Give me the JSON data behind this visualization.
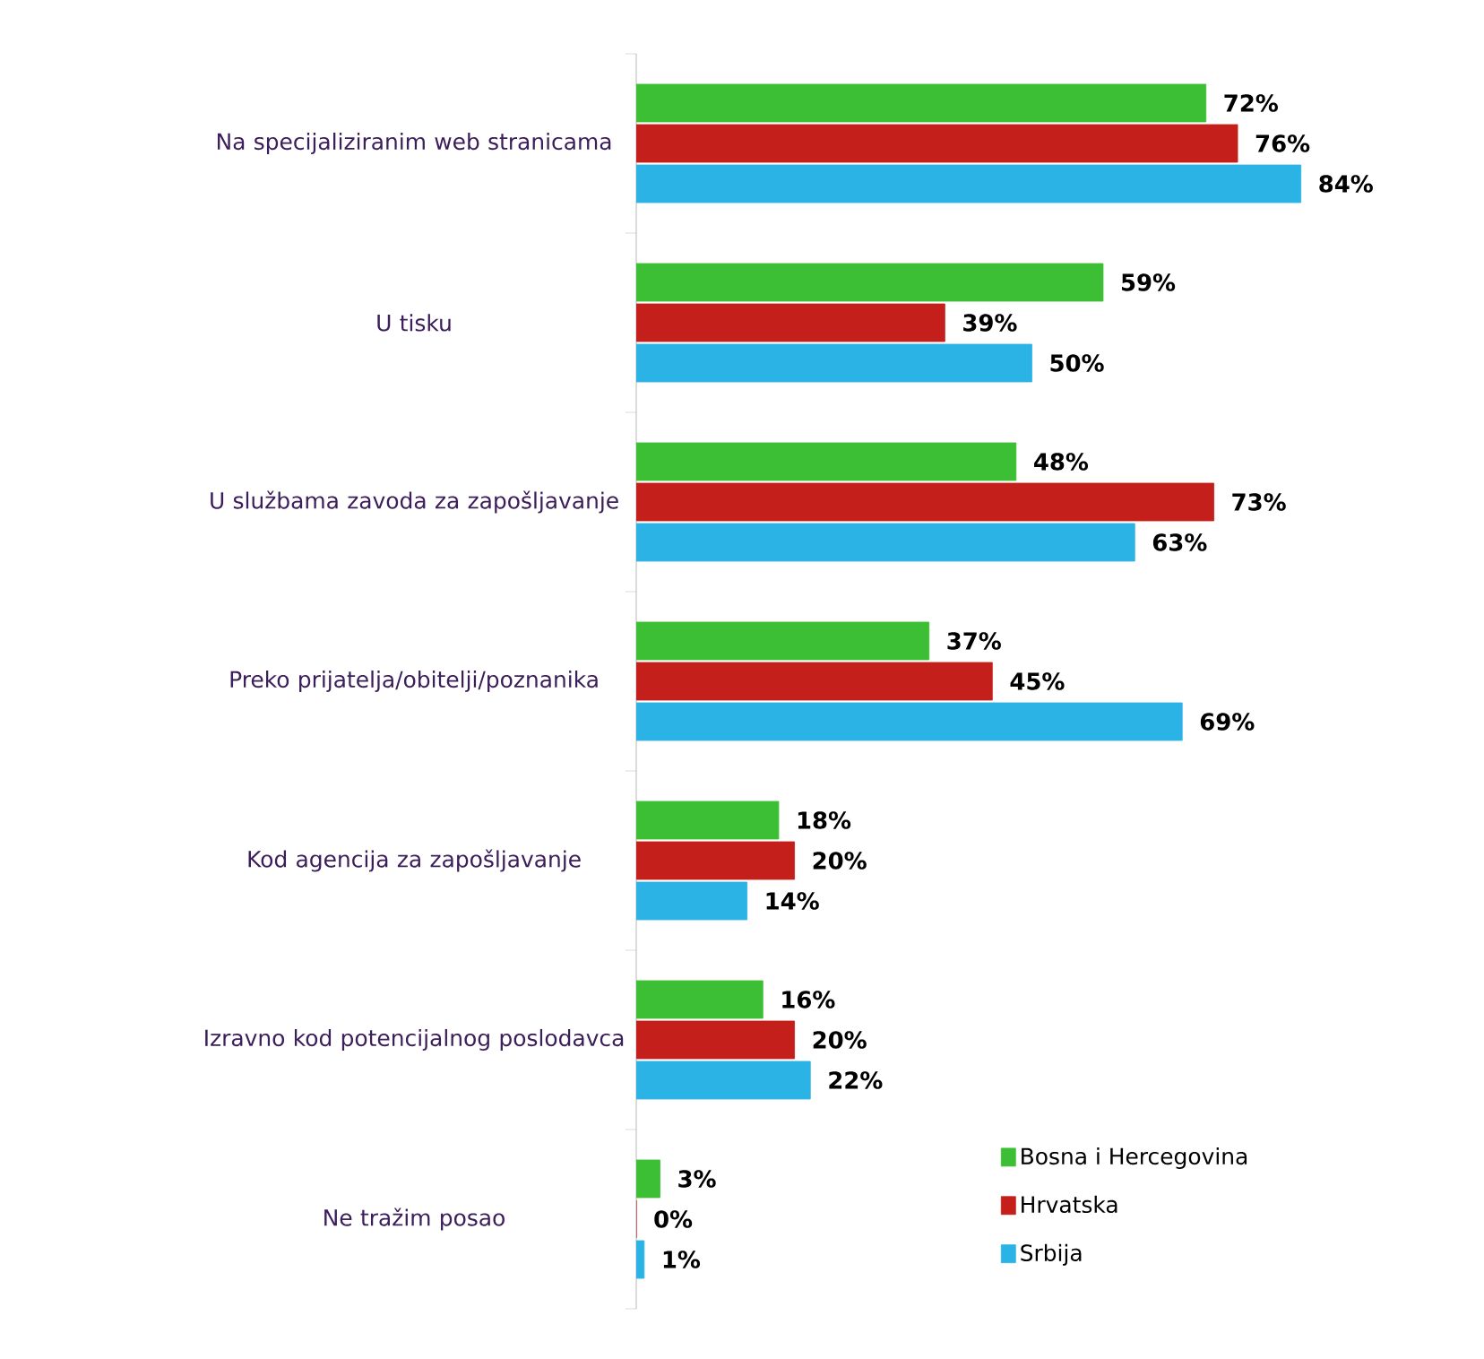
{
  "chart_data": {
    "type": "bar",
    "orientation": "horizontal",
    "categories": [
      "Na specijaliziranim web stranicama",
      "U tisku",
      "U službama zavoda za zapošljavanje",
      "Preko prijatelja/obitelji/poznanika",
      "Kod agencija za zapošljavanje",
      "Izravno kod potencijalnog poslodavca",
      "Ne tražim posao"
    ],
    "series": [
      {
        "name": "Bosna i Hercegovina",
        "color": "#3cbf34",
        "values": [
          72,
          59,
          48,
          37,
          18,
          16,
          3
        ],
        "value_labels": [
          "72%",
          "59%",
          "48%",
          "37%",
          "18%",
          "16%",
          "3%"
        ]
      },
      {
        "name": "Hrvatska",
        "color": "#c41f1a",
        "values": [
          76,
          39,
          73,
          45,
          20,
          20,
          0
        ],
        "value_labels": [
          "76%",
          "39%",
          "73%",
          "45%",
          "20%",
          "20%",
          "0%"
        ]
      },
      {
        "name": "Srbija",
        "color": "#2bb3e6",
        "values": [
          84,
          50,
          63,
          69,
          14,
          22,
          1
        ],
        "value_labels": [
          "84%",
          "50%",
          "63%",
          "69%",
          "14%",
          "22%",
          "1%"
        ]
      }
    ],
    "legend": "bottom right"
  }
}
